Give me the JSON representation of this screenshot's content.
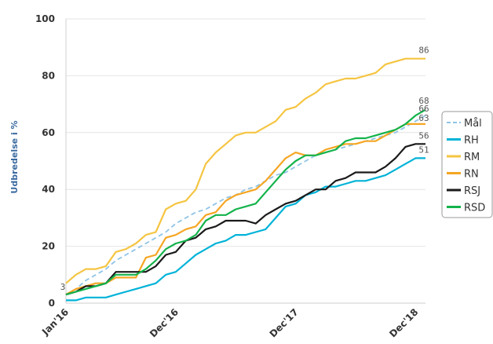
{
  "chart_data": {
    "type": "line",
    "title": "",
    "xlabel": "",
    "ylabel": "Udbredelse i %",
    "ylim": [
      0,
      100
    ],
    "yticks": [
      "0",
      "20",
      "40",
      "60",
      "80",
      "100"
    ],
    "xticks": [
      "Jan'16",
      "Dec'16",
      "Dec'17",
      "Dec'18"
    ],
    "x_months": 36,
    "grid": "horizontal",
    "legend_position": "right",
    "series": [
      {
        "name": "Mål",
        "color": "#8fc4e6",
        "dashed": true,
        "values": [
          3,
          5,
          8,
          10,
          12,
          15,
          17,
          19,
          21,
          23,
          25,
          28,
          30,
          32,
          33,
          35,
          37,
          38,
          40,
          41,
          43,
          45,
          46,
          48,
          50,
          52,
          53,
          54,
          55,
          56,
          57,
          58,
          59,
          60,
          62,
          64,
          66
        ]
      },
      {
        "name": "RH",
        "color": "#00b3d8",
        "values": [
          1,
          1,
          2,
          2,
          2,
          3,
          4,
          5,
          6,
          7,
          10,
          11,
          14,
          17,
          19,
          21,
          22,
          24,
          24,
          25,
          26,
          30,
          34,
          35,
          38,
          39,
          41,
          41,
          42,
          43,
          43,
          44,
          45,
          47,
          49,
          51,
          51
        ]
      },
      {
        "name": "RM",
        "color": "#f5c542",
        "values": [
          7,
          10,
          12,
          12,
          13,
          18,
          19,
          21,
          24,
          25,
          33,
          35,
          36,
          40,
          49,
          53,
          56,
          59,
          60,
          60,
          62,
          64,
          68,
          69,
          72,
          74,
          77,
          78,
          79,
          79,
          80,
          81,
          84,
          85,
          86,
          86,
          86
        ]
      },
      {
        "name": "RN",
        "color": "#f5a623",
        "values": [
          3,
          5,
          6,
          7,
          7,
          9,
          9,
          9,
          16,
          17,
          23,
          24,
          26,
          27,
          31,
          32,
          36,
          38,
          39,
          40,
          43,
          47,
          51,
          53,
          52,
          52,
          54,
          55,
          56,
          56,
          57,
          57,
          59,
          61,
          63,
          63,
          63
        ]
      },
      {
        "name": "RSJ",
        "color": "#1a1a1a",
        "values": [
          3,
          4,
          6,
          6,
          7,
          11,
          11,
          11,
          11,
          13,
          17,
          18,
          22,
          23,
          26,
          27,
          29,
          29,
          29,
          28,
          31,
          33,
          35,
          36,
          38,
          40,
          40,
          43,
          44,
          46,
          46,
          46,
          48,
          51,
          55,
          56,
          56
        ]
      },
      {
        "name": "RSD",
        "color": "#13b34b",
        "values": [
          3,
          4,
          5,
          6,
          7,
          10,
          10,
          10,
          12,
          15,
          19,
          21,
          22,
          24,
          29,
          31,
          31,
          33,
          34,
          35,
          39,
          43,
          47,
          50,
          52,
          52,
          53,
          54,
          57,
          58,
          58,
          59,
          60,
          61,
          63,
          66,
          68
        ]
      }
    ],
    "data_labels": [
      {
        "series": "RSJ",
        "x": 0,
        "text": "3"
      },
      {
        "series": "RM",
        "x": 36,
        "text": "86"
      },
      {
        "series": "RSD",
        "x": 36,
        "text": "68"
      },
      {
        "series": "Mål",
        "x": 36,
        "text": "66"
      },
      {
        "series": "RN",
        "x": 36,
        "text": "63"
      },
      {
        "series": "RSJ",
        "x": 36,
        "text": "56"
      },
      {
        "series": "RH",
        "x": 36,
        "text": "51"
      }
    ]
  }
}
